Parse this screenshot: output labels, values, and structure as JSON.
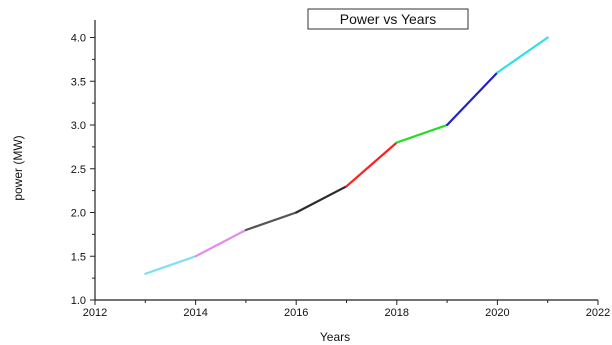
{
  "chart_data": {
    "type": "line",
    "title": "Power vs Years",
    "xlabel": "Years",
    "ylabel": "power (MW)",
    "xlim": [
      2012,
      2022
    ],
    "ylim": [
      1.0,
      4.2
    ],
    "x_ticks": [
      2012,
      2014,
      2016,
      2018,
      2020,
      2022
    ],
    "x_tick_labels": [
      "2012",
      "2014",
      "2016",
      "2018",
      "2020",
      "2022"
    ],
    "y_ticks": [
      1.0,
      1.5,
      2.0,
      2.5,
      3.0,
      3.5,
      4.0
    ],
    "y_tick_labels": [
      "1.0",
      "1.5",
      "2.0",
      "2.5",
      "3.0",
      "3.5",
      "4.0"
    ],
    "grid": false,
    "segments": [
      {
        "x": [
          2013,
          2014
        ],
        "y": [
          1.3,
          1.5
        ],
        "color": "#7fe0f0"
      },
      {
        "x": [
          2014,
          2015
        ],
        "y": [
          1.5,
          1.8
        ],
        "color": "#e08ee8"
      },
      {
        "x": [
          2015,
          2016
        ],
        "y": [
          1.8,
          2.0
        ],
        "color": "#555555"
      },
      {
        "x": [
          2016,
          2017
        ],
        "y": [
          2.0,
          2.3
        ],
        "color": "#2a2a2a"
      },
      {
        "x": [
          2017,
          2018
        ],
        "y": [
          2.3,
          2.8
        ],
        "color": "#ff2020"
      },
      {
        "x": [
          2018,
          2019
        ],
        "y": [
          2.8,
          3.0
        ],
        "color": "#22dd22"
      },
      {
        "x": [
          2019,
          2020
        ],
        "y": [
          3.0,
          3.6
        ],
        "color": "#2222cc"
      },
      {
        "x": [
          2020,
          2021
        ],
        "y": [
          3.6,
          4.0
        ],
        "color": "#33e0e0"
      }
    ]
  }
}
